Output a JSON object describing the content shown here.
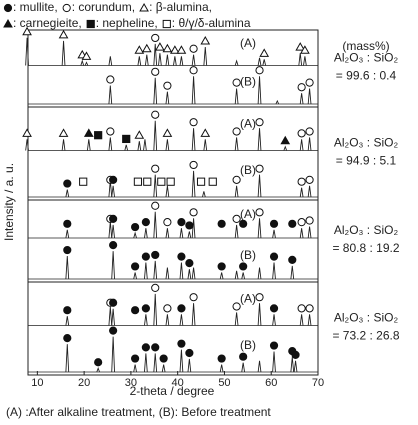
{
  "chart_data": {
    "type": "xrd",
    "xlabel": "2-theta / degree",
    "ylabel": "Intensity / a. u.",
    "xlim": [
      8,
      70
    ],
    "xticks": [
      10,
      20,
      30,
      40,
      50,
      60,
      70
    ],
    "phases": [
      {
        "symbol": "filled-circle",
        "label": ": mullite,"
      },
      {
        "symbol": "open-circle",
        "label": ": corundum,"
      },
      {
        "symbol": "open-triangle",
        "label": ": β-alumina,"
      },
      {
        "symbol": "filled-triangle",
        "label": ": carnegieite,"
      },
      {
        "symbol": "filled-square",
        "label": ": nepheline,"
      },
      {
        "symbol": "open-square",
        "label": ": θ/γ/δ-alumina"
      }
    ],
    "unit_label": "(mass%)",
    "footer": "(A) :After alkaline treatment, (B): Before treatment",
    "panels": [
      {
        "ratio_label": "Al₂O₃ : SiO₂",
        "ratio": "= 99.6 : 0.4",
        "traces": [
          {
            "label": "(A)",
            "peak_x": [
              7.8,
              15.6,
              19.6,
              20.5,
              25.6,
              31.8,
              33.4,
              35.2,
              36.2,
              37.8,
              39.4,
              40.8,
              43.4,
              45.9,
              52.6,
              57.5,
              58.5,
              66.2,
              67.2
            ],
            "peak_height": [
              0.9,
              0.8,
              0.15,
              0.1,
              0.3,
              0.3,
              0.35,
              0.7,
              0.4,
              0.35,
              0.3,
              0.3,
              0.35,
              0.6,
              0.15,
              0.25,
              0.2,
              0.4,
              0.3
            ],
            "markers": [
              {
                "phase": 2,
                "x": 7.8
              },
              {
                "phase": 2,
                "x": 15.6
              },
              {
                "phase": 2,
                "x": 19.6
              },
              {
                "phase": 2,
                "x": 20.5
              },
              {
                "phase": 2,
                "x": 31.8
              },
              {
                "phase": 2,
                "x": 33.4
              },
              {
                "phase": 1,
                "x": 35.2
              },
              {
                "phase": 2,
                "x": 36.2
              },
              {
                "phase": 2,
                "x": 37.8
              },
              {
                "phase": 2,
                "x": 39.4
              },
              {
                "phase": 2,
                "x": 40.8
              },
              {
                "phase": 1,
                "x": 43.4
              },
              {
                "phase": 2,
                "x": 45.9
              },
              {
                "phase": 2,
                "x": 58.5
              },
              {
                "phase": 2,
                "x": 66.2
              },
              {
                "phase": 2,
                "x": 67.2
              }
            ]
          },
          {
            "label": "(B)",
            "peak_x": [
              25.6,
              35.2,
              37.8,
              43.4,
              52.6,
              57.5,
              61.3,
              66.5,
              68.2
            ],
            "peak_height": [
              0.6,
              0.85,
              0.4,
              0.9,
              0.5,
              0.9,
              0.1,
              0.35,
              0.5
            ],
            "markers": [
              {
                "phase": 1,
                "x": 25.6
              },
              {
                "phase": 1,
                "x": 35.2
              },
              {
                "phase": 1,
                "x": 37.8
              },
              {
                "phase": 1,
                "x": 43.4
              },
              {
                "phase": 1,
                "x": 52.6
              },
              {
                "phase": 1,
                "x": 57.5
              },
              {
                "phase": 1,
                "x": 66.5
              },
              {
                "phase": 1,
                "x": 68.2
              }
            ]
          }
        ]
      },
      {
        "ratio_label": "Al₂O₃ : SiO₂",
        "ratio": "= 94.9 : 5.1",
        "traces": [
          {
            "label": "(A)",
            "peak_x": [
              7.8,
              15.6,
              21.0,
              25.6,
              29.0,
              31.8,
              33.0,
              35.2,
              37.8,
              43.4,
              45.9,
              52.6,
              57.5,
              63.0,
              66.5,
              68.2
            ],
            "peak_height": [
              0.3,
              0.3,
              0.3,
              0.35,
              0.15,
              0.25,
              0.3,
              0.8,
              0.3,
              0.6,
              0.3,
              0.35,
              0.6,
              0.1,
              0.3,
              0.35
            ],
            "markers": [
              {
                "phase": 2,
                "x": 7.8
              },
              {
                "phase": 2,
                "x": 15.6
              },
              {
                "phase": 3,
                "x": 21.0
              },
              {
                "phase": 4,
                "x": 23.0
              },
              {
                "phase": 1,
                "x": 25.6
              },
              {
                "phase": 4,
                "x": 29.0
              },
              {
                "phase": 2,
                "x": 31.8
              },
              {
                "phase": 1,
                "x": 35.2
              },
              {
                "phase": 2,
                "x": 37.8
              },
              {
                "phase": 1,
                "x": 43.4
              },
              {
                "phase": 2,
                "x": 45.9
              },
              {
                "phase": 1,
                "x": 52.6
              },
              {
                "phase": 1,
                "x": 57.5
              },
              {
                "phase": 3,
                "x": 63.0
              },
              {
                "phase": 1,
                "x": 66.5
              },
              {
                "phase": 1,
                "x": 68.2
              }
            ]
          },
          {
            "label": "(B)",
            "peak_x": [
              16.4,
              25.6,
              26.2,
              35.2,
              37.8,
              43.4,
              45.6,
              52.6,
              57.5,
              66.5,
              68.2
            ],
            "peak_height": [
              0.2,
              0.45,
              0.3,
              0.6,
              0.3,
              0.7,
              0.15,
              0.3,
              0.6,
              0.25,
              0.3
            ],
            "markers": [
              {
                "phase": 0,
                "x": 16.4
              },
              {
                "phase": 5,
                "x": 19.8
              },
              {
                "phase": 1,
                "x": 25.6
              },
              {
                "phase": 0,
                "x": 26.2
              },
              {
                "phase": 5,
                "x": 31.5
              },
              {
                "phase": 5,
                "x": 33.5
              },
              {
                "phase": 1,
                "x": 35.2
              },
              {
                "phase": 5,
                "x": 36.5
              },
              {
                "phase": 5,
                "x": 38.5
              },
              {
                "phase": 1,
                "x": 43.4
              },
              {
                "phase": 5,
                "x": 45.0
              },
              {
                "phase": 5,
                "x": 47.5
              },
              {
                "phase": 1,
                "x": 52.6
              },
              {
                "phase": 1,
                "x": 57.5
              },
              {
                "phase": 1,
                "x": 66.5
              },
              {
                "phase": 1,
                "x": 68.2
              }
            ]
          }
        ]
      },
      {
        "ratio_label": "Al₂O₃ : SiO₂",
        "ratio": "= 80.8 : 19.2",
        "traces": [
          {
            "label": "(A)",
            "peak_x": [
              16.4,
              25.6,
              26.2,
              30.9,
              33.2,
              35.2,
              37.8,
              40.8,
              42.5,
              43.4,
              52.6,
              57.5,
              60.6,
              66.5,
              68.2
            ],
            "peak_height": [
              0.25,
              0.5,
              0.4,
              0.15,
              0.3,
              0.8,
              0.3,
              0.3,
              0.2,
              0.6,
              0.4,
              0.6,
              0.25,
              0.3,
              0.35
            ],
            "markers": [
              {
                "phase": 0,
                "x": 16.4
              },
              {
                "phase": 1,
                "x": 25.6
              },
              {
                "phase": 0,
                "x": 26.2
              },
              {
                "phase": 0,
                "x": 30.9
              },
              {
                "phase": 0,
                "x": 33.2
              },
              {
                "phase": 1,
                "x": 35.2
              },
              {
                "phase": 1,
                "x": 37.8
              },
              {
                "phase": 0,
                "x": 40.8
              },
              {
                "phase": 0,
                "x": 42.5
              },
              {
                "phase": 1,
                "x": 43.4
              },
              {
                "phase": 0,
                "x": 49.4
              },
              {
                "phase": 1,
                "x": 52.6
              },
              {
                "phase": 0,
                "x": 54.0
              },
              {
                "phase": 1,
                "x": 57.5
              },
              {
                "phase": 0,
                "x": 60.6
              },
              {
                "phase": 0,
                "x": 64.5
              },
              {
                "phase": 1,
                "x": 66.5
              },
              {
                "phase": 1,
                "x": 68.2
              }
            ]
          },
          {
            "label": "(B)",
            "peak_x": [
              16.4,
              26.2,
              30.9,
              33.2,
              35.2,
              37.8,
              40.8,
              42.5,
              43.4,
              49.4,
              52.6,
              54.0,
              57.5,
              60.6,
              64.5
            ],
            "peak_height": [
              0.7,
              0.85,
              0.2,
              0.5,
              0.55,
              0.35,
              0.5,
              0.3,
              0.35,
              0.2,
              0.25,
              0.2,
              0.35,
              0.5,
              0.4
            ],
            "markers": [
              {
                "phase": 0,
                "x": 16.4
              },
              {
                "phase": 0,
                "x": 26.2
              },
              {
                "phase": 0,
                "x": 30.9
              },
              {
                "phase": 0,
                "x": 33.2
              },
              {
                "phase": 0,
                "x": 35.2
              },
              {
                "phase": 0,
                "x": 40.8
              },
              {
                "phase": 0,
                "x": 42.5
              },
              {
                "phase": 0,
                "x": 49.4
              },
              {
                "phase": 0,
                "x": 54.0
              },
              {
                "phase": 0,
                "x": 60.6
              },
              {
                "phase": 0,
                "x": 64.5
              }
            ]
          }
        ]
      },
      {
        "ratio_label": "Al₂O₃ : SiO₂",
        "ratio": "= 73.2 : 26.8",
        "traces": [
          {
            "label": "(A)",
            "peak_x": [
              16.4,
              25.6,
              26.2,
              33.2,
              35.2,
              37.8,
              40.8,
              43.4,
              52.6,
              57.5,
              60.6,
              66.5,
              68.2
            ],
            "peak_height": [
              0.25,
              0.5,
              0.45,
              0.3,
              0.85,
              0.3,
              0.3,
              0.6,
              0.35,
              0.6,
              0.3,
              0.3,
              0.3
            ],
            "markers": [
              {
                "phase": 0,
                "x": 16.4
              },
              {
                "phase": 1,
                "x": 25.6
              },
              {
                "phase": 0,
                "x": 26.2
              },
              {
                "phase": 0,
                "x": 30.9
              },
              {
                "phase": 0,
                "x": 33.2
              },
              {
                "phase": 1,
                "x": 35.2
              },
              {
                "phase": 1,
                "x": 37.8
              },
              {
                "phase": 0,
                "x": 40.8
              },
              {
                "phase": 1,
                "x": 43.4
              },
              {
                "phase": 1,
                "x": 52.6
              },
              {
                "phase": 1,
                "x": 57.5
              },
              {
                "phase": 0,
                "x": 60.6
              },
              {
                "phase": 1,
                "x": 66.5
              },
              {
                "phase": 1,
                "x": 68.2
              }
            ]
          },
          {
            "label": "(B)",
            "peak_x": [
              16.4,
              23.0,
              26.2,
              30.9,
              33.2,
              35.2,
              37.0,
              40.8,
              42.5,
              49.4,
              54.0,
              57.5,
              60.6,
              64.5,
              65.2
            ],
            "peak_height": [
              0.75,
              0.1,
              0.95,
              0.2,
              0.5,
              0.5,
              0.2,
              0.6,
              0.35,
              0.2,
              0.25,
              0.3,
              0.55,
              0.4,
              0.3
            ],
            "markers": [
              {
                "phase": 0,
                "x": 16.4
              },
              {
                "phase": 0,
                "x": 23.0
              },
              {
                "phase": 0,
                "x": 26.2
              },
              {
                "phase": 0,
                "x": 30.9
              },
              {
                "phase": 0,
                "x": 33.2
              },
              {
                "phase": 0,
                "x": 35.2
              },
              {
                "phase": 0,
                "x": 37.0
              },
              {
                "phase": 0,
                "x": 40.8
              },
              {
                "phase": 0,
                "x": 42.5
              },
              {
                "phase": 0,
                "x": 49.4
              },
              {
                "phase": 0,
                "x": 54.0
              },
              {
                "phase": 0,
                "x": 60.6
              },
              {
                "phase": 0,
                "x": 64.5
              },
              {
                "phase": 0,
                "x": 65.2
              }
            ]
          }
        ]
      }
    ]
  }
}
